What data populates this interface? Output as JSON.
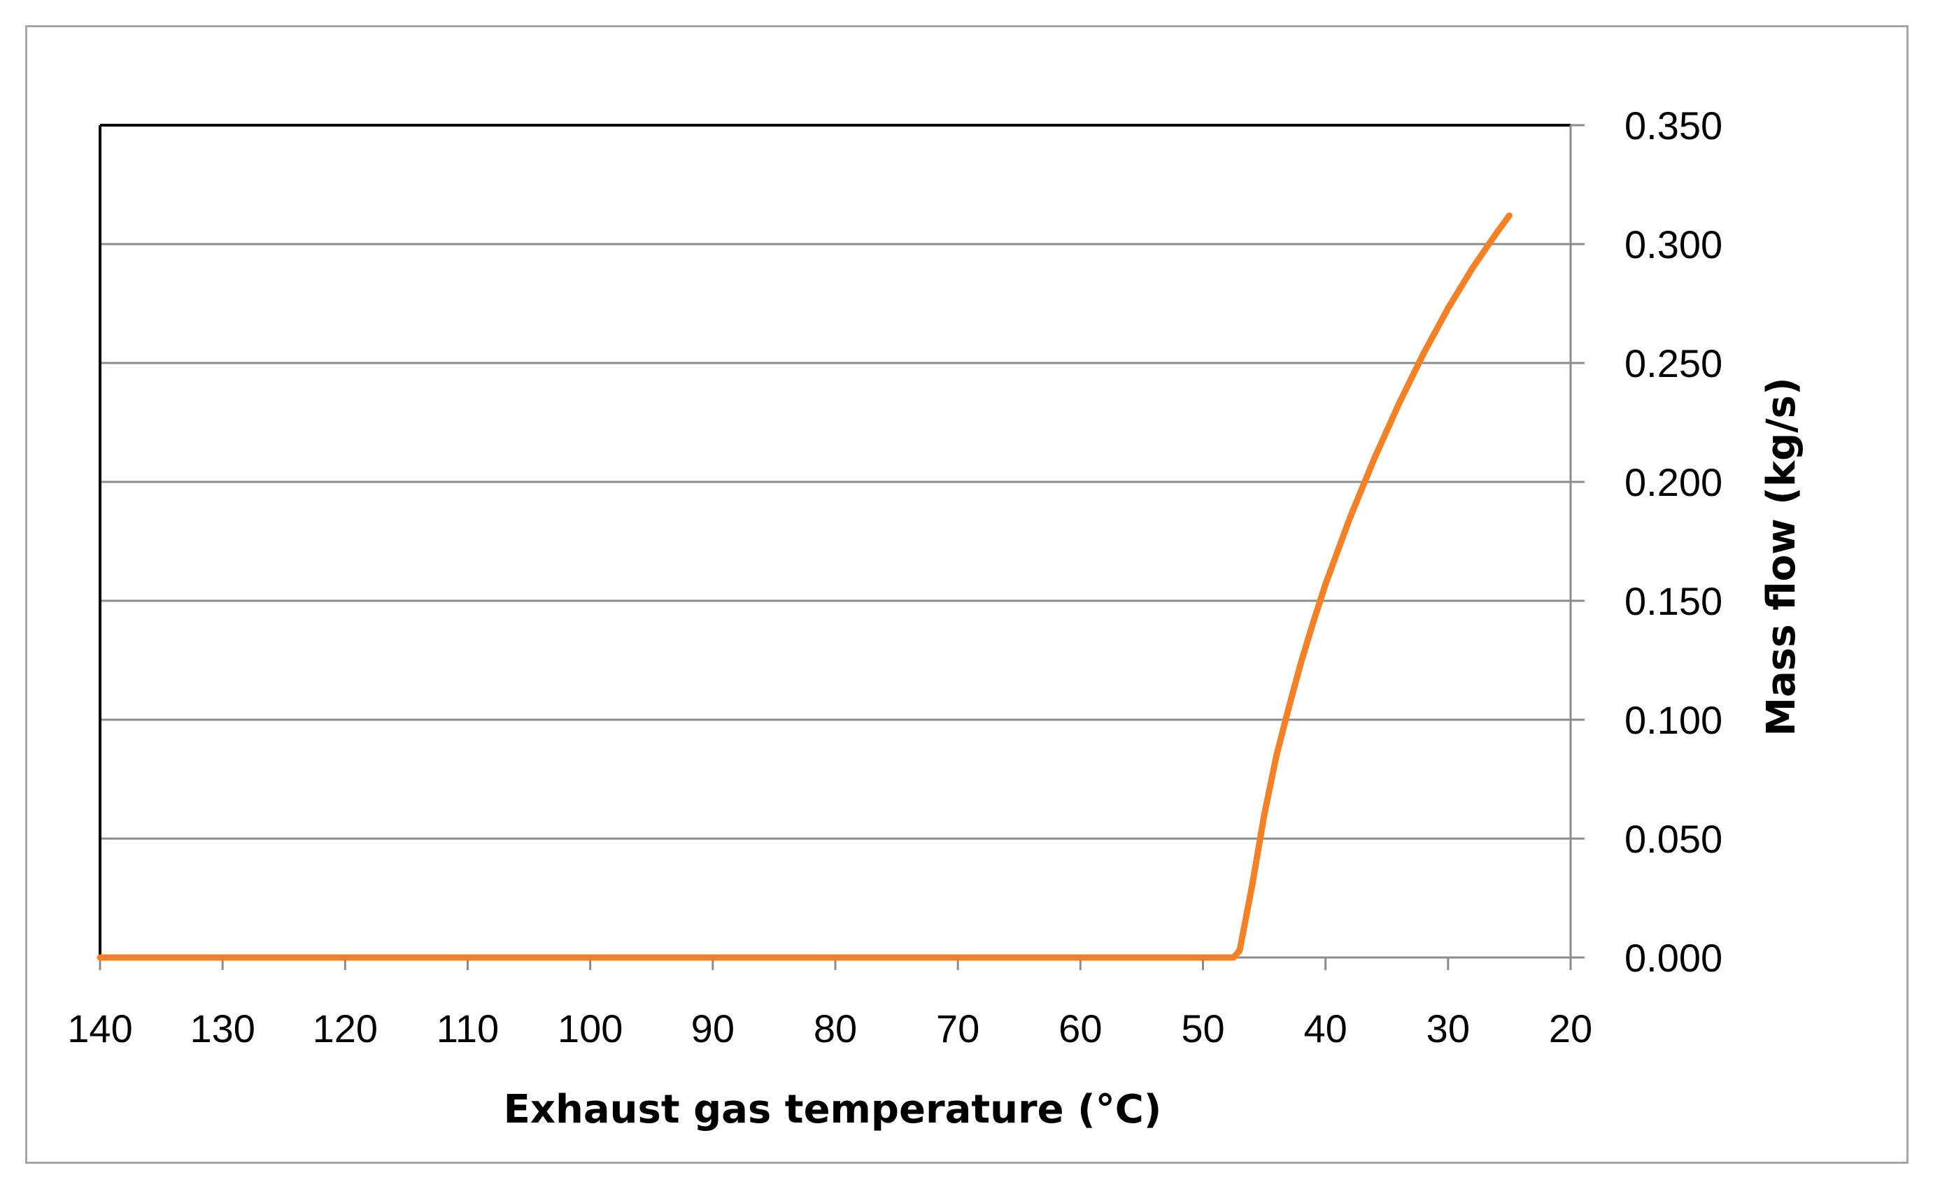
{
  "chart_data": {
    "type": "line",
    "xlabel": "Exhaust gas temperature (°C)",
    "ylabel": "Mass  flow (kg/s)",
    "xlim": [
      140,
      20
    ],
    "ylim": [
      0,
      0.35
    ],
    "x_reversed": true,
    "x_ticks": [
      "140",
      "130",
      "120",
      "110",
      "100",
      "90",
      "80",
      "70",
      "60",
      "50",
      "40",
      "30",
      "20"
    ],
    "y_ticks": [
      "0.000",
      "0.050",
      "0.100",
      "0.150",
      "0.200",
      "0.250",
      "0.300",
      "0.350"
    ],
    "y_axis_position": "right",
    "grid": "horizontal",
    "series": [
      {
        "color": "#f58025",
        "x": [
          140,
          120,
          100,
          80,
          60,
          48,
          47.5,
          47,
          46,
          45,
          44,
          43,
          42,
          41,
          40,
          38,
          36,
          34,
          32,
          30,
          28,
          26,
          25
        ],
        "y": [
          0,
          0,
          0,
          0,
          0,
          0,
          0,
          0.003,
          0.03,
          0.06,
          0.085,
          0.105,
          0.124,
          0.141,
          0.157,
          0.185,
          0.21,
          0.233,
          0.254,
          0.273,
          0.29,
          0.305,
          0.312
        ]
      }
    ]
  }
}
